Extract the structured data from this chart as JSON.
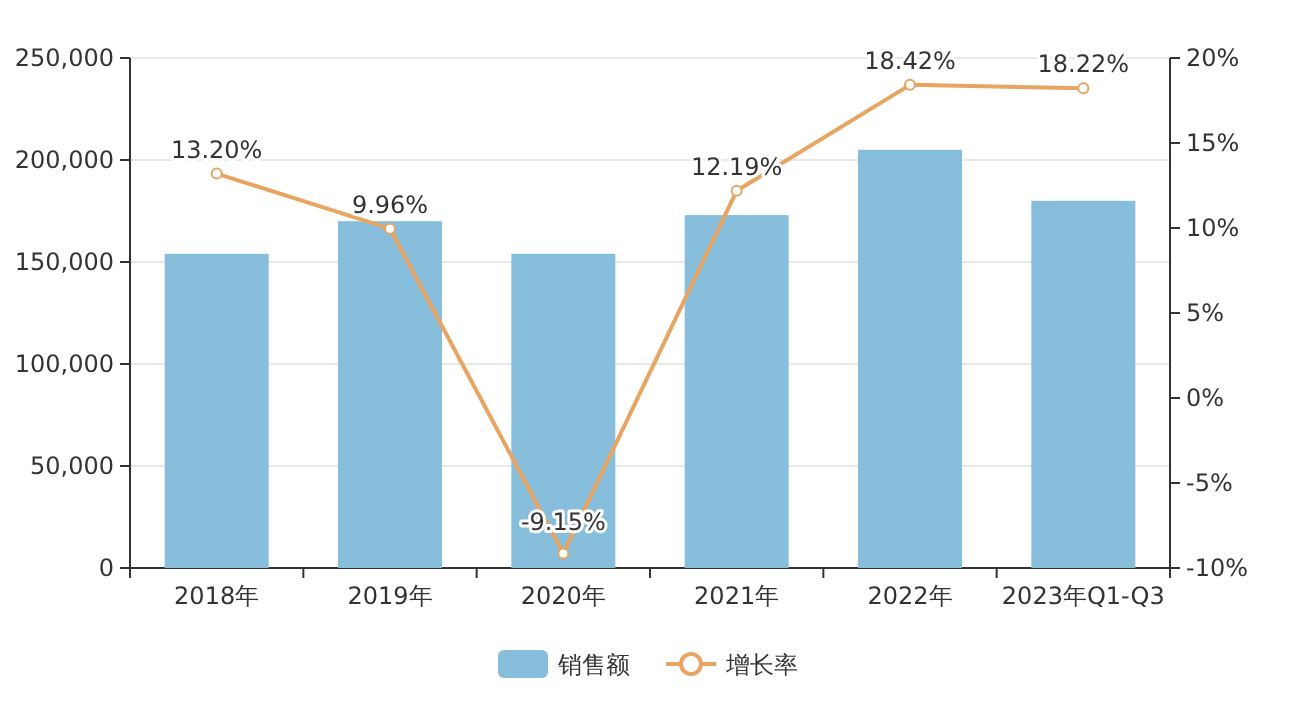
{
  "chart_data": {
    "type": "bar",
    "categories": [
      "2018年",
      "2019年",
      "2020年",
      "2021年",
      "2022年",
      "2023年Q1-Q3"
    ],
    "series": [
      {
        "name": "销售额",
        "color": "#86bedc",
        "values": [
          154000,
          170000,
          154000,
          173000,
          205000,
          180000
        ]
      },
      {
        "name": "增长率",
        "type": "line",
        "axis": "y2",
        "color": "#e8a462",
        "marker": "circle",
        "values": [
          13.2,
          9.96,
          -9.15,
          12.19,
          18.42,
          18.22
        ],
        "value_labels": [
          "13.20%",
          "9.96%",
          "-9.15%",
          "12.19%",
          "18.42%",
          "18.22%"
        ]
      }
    ],
    "ylim": [
      0,
      250000
    ],
    "yticks": [
      0,
      {
        "value": 50000,
        "label": "50,000"
      },
      {
        "value": 100000,
        "label": "100,000"
      },
      {
        "value": 150000,
        "label": "150,000"
      },
      {
        "value": 200000,
        "label": "200,000"
      },
      {
        "value": 250000,
        "label": "250,000"
      }
    ],
    "y2lim": [
      -10,
      20
    ],
    "y2ticks": [
      {
        "value": -10,
        "label": "-10%"
      },
      {
        "value": -5,
        "label": "-5%"
      },
      {
        "value": 0,
        "label": "0%"
      },
      {
        "value": 5,
        "label": "5%"
      },
      {
        "value": 10,
        "label": "10%"
      },
      {
        "value": 15,
        "label": "15%"
      },
      {
        "value": 20,
        "label": "20%"
      }
    ],
    "grid": "y",
    "legend": "bottom"
  }
}
